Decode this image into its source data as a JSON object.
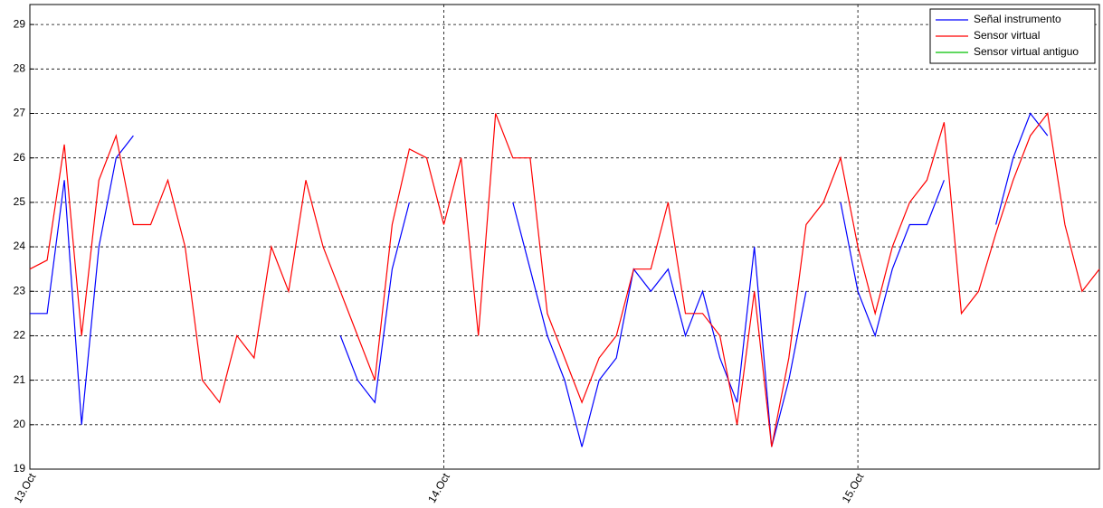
{
  "chart_data": {
    "type": "line",
    "categories": [
      "13.Oct",
      null,
      null,
      null,
      null,
      null,
      null,
      null,
      null,
      null,
      null,
      null,
      null,
      null,
      null,
      null,
      null,
      null,
      null,
      null,
      null,
      null,
      null,
      null,
      "14.Oct",
      null,
      null,
      null,
      null,
      null,
      null,
      null,
      null,
      null,
      null,
      null,
      null,
      null,
      null,
      null,
      null,
      null,
      null,
      null,
      null,
      null,
      null,
      null,
      "15.Oct",
      null,
      null,
      null,
      null,
      null,
      null,
      null,
      null,
      null,
      null,
      null,
      null,
      null,
      null
    ],
    "series": [
      {
        "name": "Señal instrumento",
        "color": "#0000ff",
        "values": [
          22.5,
          22.5,
          25.5,
          20.0,
          24.0,
          26.0,
          26.5,
          null,
          null,
          null,
          null,
          null,
          null,
          null,
          null,
          null,
          null,
          null,
          22.0,
          21.0,
          20.5,
          23.5,
          25.0,
          null,
          null,
          null,
          null,
          null,
          25.0,
          23.5,
          22.0,
          21.0,
          19.5,
          21.0,
          21.5,
          23.5,
          23.0,
          23.5,
          22.0,
          23.0,
          21.5,
          20.5,
          24.0,
          19.5,
          21.0,
          23.0,
          null,
          25.0,
          23.0,
          22.0,
          23.5,
          24.5,
          24.5,
          25.5,
          null,
          null,
          24.5,
          26.0,
          27.0,
          26.5,
          null,
          null,
          23.5
        ]
      },
      {
        "name": "Sensor virtual",
        "color": "#ff0000",
        "values": [
          23.5,
          23.7,
          26.3,
          22.0,
          25.5,
          26.5,
          24.5,
          24.5,
          25.5,
          24.0,
          21.0,
          20.5,
          22.0,
          21.5,
          24.0,
          23.0,
          25.5,
          24.0,
          23.0,
          22.0,
          21.0,
          24.5,
          26.2,
          26.0,
          24.5,
          26.0,
          22.0,
          27.0,
          26.0,
          26.0,
          22.5,
          21.5,
          20.5,
          21.5,
          22.0,
          23.5,
          23.5,
          25.0,
          22.5,
          22.5,
          22.0,
          20.0,
          23.0,
          19.5,
          21.5,
          24.5,
          25.0,
          26.0,
          24.0,
          22.5,
          24.0,
          25.0,
          25.5,
          26.8,
          22.5,
          23.0,
          24.3,
          25.5,
          26.5,
          27.0,
          24.5,
          23.0,
          23.5
        ]
      },
      {
        "name": "Sensor virtual antiguo",
        "color": "#00c000",
        "values": [
          null,
          null,
          null,
          null,
          null,
          null,
          null,
          null,
          null,
          null,
          null,
          null,
          null,
          null,
          null,
          null,
          null,
          null,
          null,
          null,
          null,
          null,
          null,
          null,
          null,
          null,
          null,
          null,
          null,
          null,
          null,
          null,
          null,
          null,
          null,
          null,
          null,
          null,
          null,
          null,
          null,
          null,
          null,
          null,
          null,
          null,
          null,
          null,
          null,
          null,
          null,
          null,
          null,
          null,
          null,
          null,
          null,
          null,
          null,
          null,
          null,
          null,
          null
        ]
      }
    ],
    "ylim": [
      19,
      29.45
    ],
    "yticks": [
      19,
      20,
      21,
      22,
      23,
      24,
      25,
      26,
      27,
      28,
      29
    ],
    "grid": true,
    "legend": "top-right"
  }
}
